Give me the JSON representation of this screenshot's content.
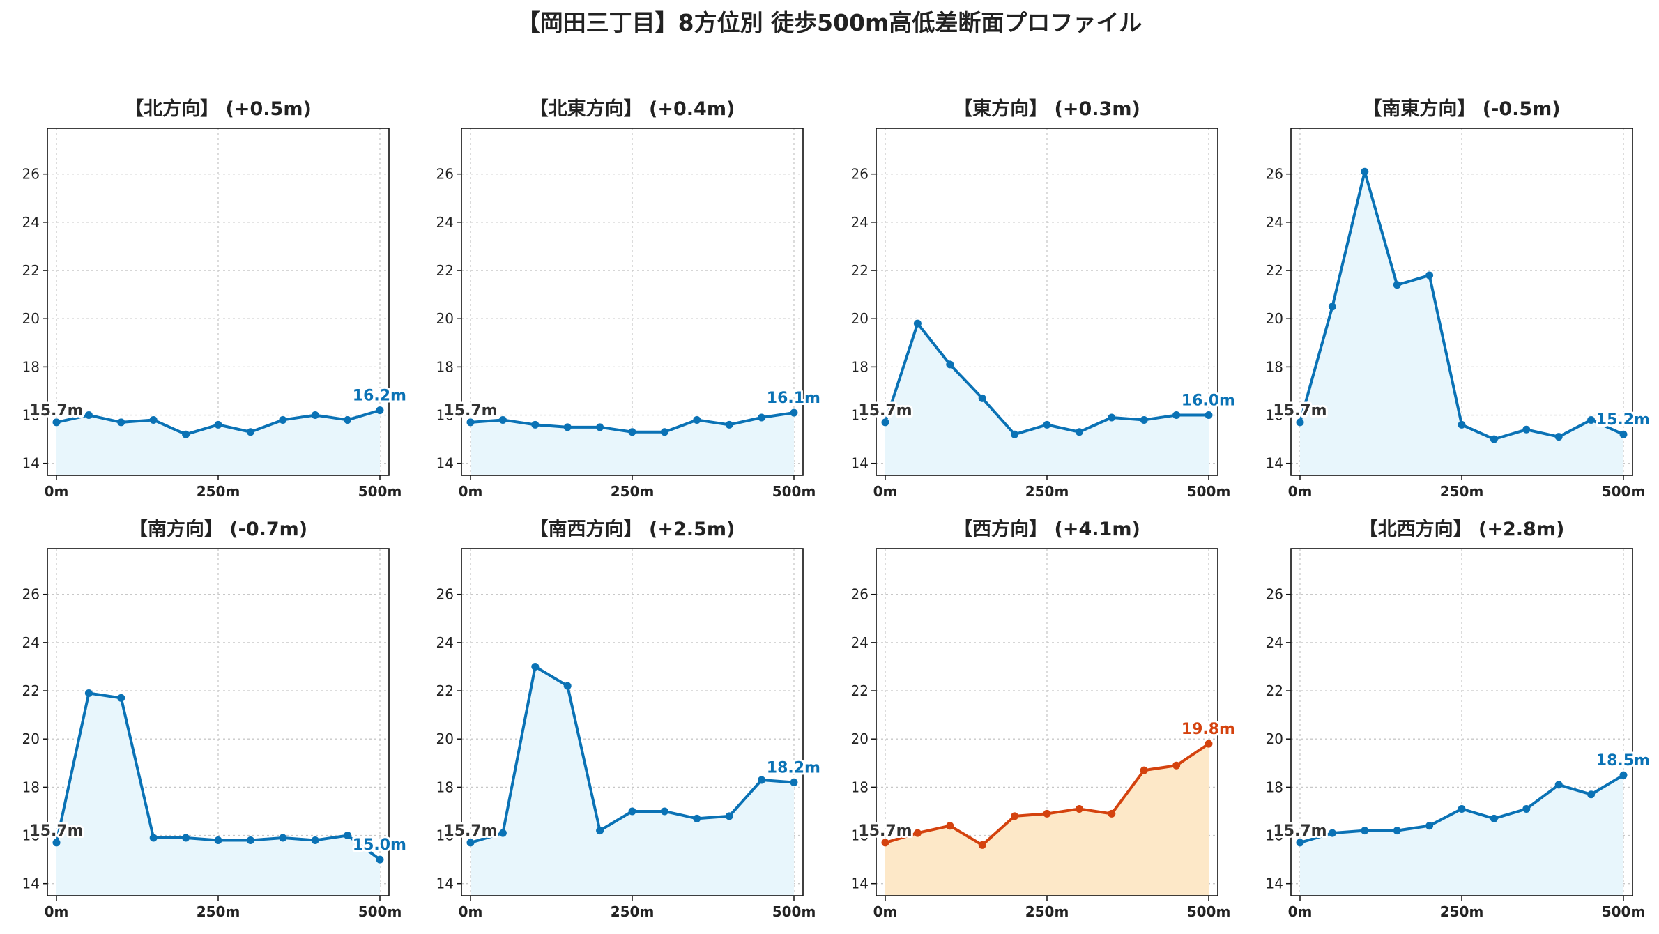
{
  "title": "【岡田三丁目】8方位別 徒歩500m高低差断面プロファイル",
  "colors": {
    "normal_line": "#0a72b5",
    "normal_fill": "#e8f6fc",
    "highlight_line": "#d4420e",
    "highlight_fill": "#fde8c8"
  },
  "chart_data": [
    {
      "type": "area",
      "title": "【北方向】 (+0.5m)",
      "x": [
        0,
        50,
        100,
        150,
        200,
        250,
        300,
        350,
        400,
        450,
        500
      ],
      "values": [
        15.7,
        16.0,
        15.7,
        15.8,
        15.2,
        15.6,
        15.3,
        15.8,
        16.0,
        15.8,
        16.2
      ],
      "start_label": "15.7m",
      "end_label": "16.2m",
      "highlight": false,
      "ylim": [
        13.5,
        27.9
      ],
      "yticks": [
        "14",
        "16",
        "18",
        "20",
        "22",
        "24",
        "26"
      ],
      "xticks": [
        "0m",
        "250m",
        "500m"
      ],
      "grid": true
    },
    {
      "type": "area",
      "title": "【北東方向】 (+0.4m)",
      "x": [
        0,
        50,
        100,
        150,
        200,
        250,
        300,
        350,
        400,
        450,
        500
      ],
      "values": [
        15.7,
        15.8,
        15.6,
        15.5,
        15.5,
        15.3,
        15.3,
        15.8,
        15.6,
        15.9,
        16.1
      ],
      "start_label": "15.7m",
      "end_label": "16.1m",
      "highlight": false,
      "ylim": [
        13.5,
        27.9
      ],
      "yticks": [
        "14",
        "16",
        "18",
        "20",
        "22",
        "24",
        "26"
      ],
      "xticks": [
        "0m",
        "250m",
        "500m"
      ],
      "grid": true
    },
    {
      "type": "area",
      "title": "【東方向】 (+0.3m)",
      "x": [
        0,
        50,
        100,
        150,
        200,
        250,
        300,
        350,
        400,
        450,
        500
      ],
      "values": [
        15.7,
        19.8,
        18.1,
        16.7,
        15.2,
        15.6,
        15.3,
        15.9,
        15.8,
        16.0,
        16.0
      ],
      "start_label": "15.7m",
      "end_label": "16.0m",
      "highlight": false,
      "ylim": [
        13.5,
        27.9
      ],
      "yticks": [
        "14",
        "16",
        "18",
        "20",
        "22",
        "24",
        "26"
      ],
      "xticks": [
        "0m",
        "250m",
        "500m"
      ],
      "grid": true
    },
    {
      "type": "area",
      "title": "【南東方向】 (-0.5m)",
      "x": [
        0,
        50,
        100,
        150,
        200,
        250,
        300,
        350,
        400,
        450,
        500
      ],
      "values": [
        15.7,
        20.5,
        26.1,
        21.4,
        21.8,
        15.6,
        15.0,
        15.4,
        15.1,
        15.8,
        15.2
      ],
      "start_label": "15.7m",
      "end_label": "15.2m",
      "highlight": false,
      "ylim": [
        13.5,
        27.9
      ],
      "yticks": [
        "14",
        "16",
        "18",
        "20",
        "22",
        "24",
        "26"
      ],
      "xticks": [
        "0m",
        "250m",
        "500m"
      ],
      "grid": true
    },
    {
      "type": "area",
      "title": "【南方向】 (-0.7m)",
      "x": [
        0,
        50,
        100,
        150,
        200,
        250,
        300,
        350,
        400,
        450,
        500
      ],
      "values": [
        15.7,
        21.9,
        21.7,
        15.9,
        15.9,
        15.8,
        15.8,
        15.9,
        15.8,
        16.0,
        15.0
      ],
      "start_label": "15.7m",
      "end_label": "15.0m",
      "highlight": false,
      "ylim": [
        13.5,
        27.9
      ],
      "yticks": [
        "14",
        "16",
        "18",
        "20",
        "22",
        "24",
        "26"
      ],
      "xticks": [
        "0m",
        "250m",
        "500m"
      ],
      "grid": true
    },
    {
      "type": "area",
      "title": "【南西方向】 (+2.5m)",
      "x": [
        0,
        50,
        100,
        150,
        200,
        250,
        300,
        350,
        400,
        450,
        500
      ],
      "values": [
        15.7,
        16.1,
        23.0,
        22.2,
        16.2,
        17.0,
        17.0,
        16.7,
        16.8,
        18.3,
        18.2
      ],
      "start_label": "15.7m",
      "end_label": "18.2m",
      "highlight": false,
      "ylim": [
        13.5,
        27.9
      ],
      "yticks": [
        "14",
        "16",
        "18",
        "20",
        "22",
        "24",
        "26"
      ],
      "xticks": [
        "0m",
        "250m",
        "500m"
      ],
      "grid": true
    },
    {
      "type": "area",
      "title": "【西方向】 (+4.1m)",
      "x": [
        0,
        50,
        100,
        150,
        200,
        250,
        300,
        350,
        400,
        450,
        500
      ],
      "values": [
        15.7,
        16.1,
        16.4,
        15.6,
        16.8,
        16.9,
        17.1,
        16.9,
        18.7,
        18.9,
        19.8
      ],
      "start_label": "15.7m",
      "end_label": "19.8m",
      "highlight": true,
      "ylim": [
        13.5,
        27.9
      ],
      "yticks": [
        "14",
        "16",
        "18",
        "20",
        "22",
        "24",
        "26"
      ],
      "xticks": [
        "0m",
        "250m",
        "500m"
      ],
      "grid": true
    },
    {
      "type": "area",
      "title": "【北西方向】 (+2.8m)",
      "x": [
        0,
        50,
        100,
        150,
        200,
        250,
        300,
        350,
        400,
        450,
        500
      ],
      "values": [
        15.7,
        16.1,
        16.2,
        16.2,
        16.4,
        17.1,
        16.7,
        17.1,
        18.1,
        17.7,
        18.5
      ],
      "start_label": "15.7m",
      "end_label": "18.5m",
      "highlight": false,
      "ylim": [
        13.5,
        27.9
      ],
      "yticks": [
        "14",
        "16",
        "18",
        "20",
        "22",
        "24",
        "26"
      ],
      "xticks": [
        "0m",
        "250m",
        "500m"
      ],
      "grid": true
    }
  ]
}
